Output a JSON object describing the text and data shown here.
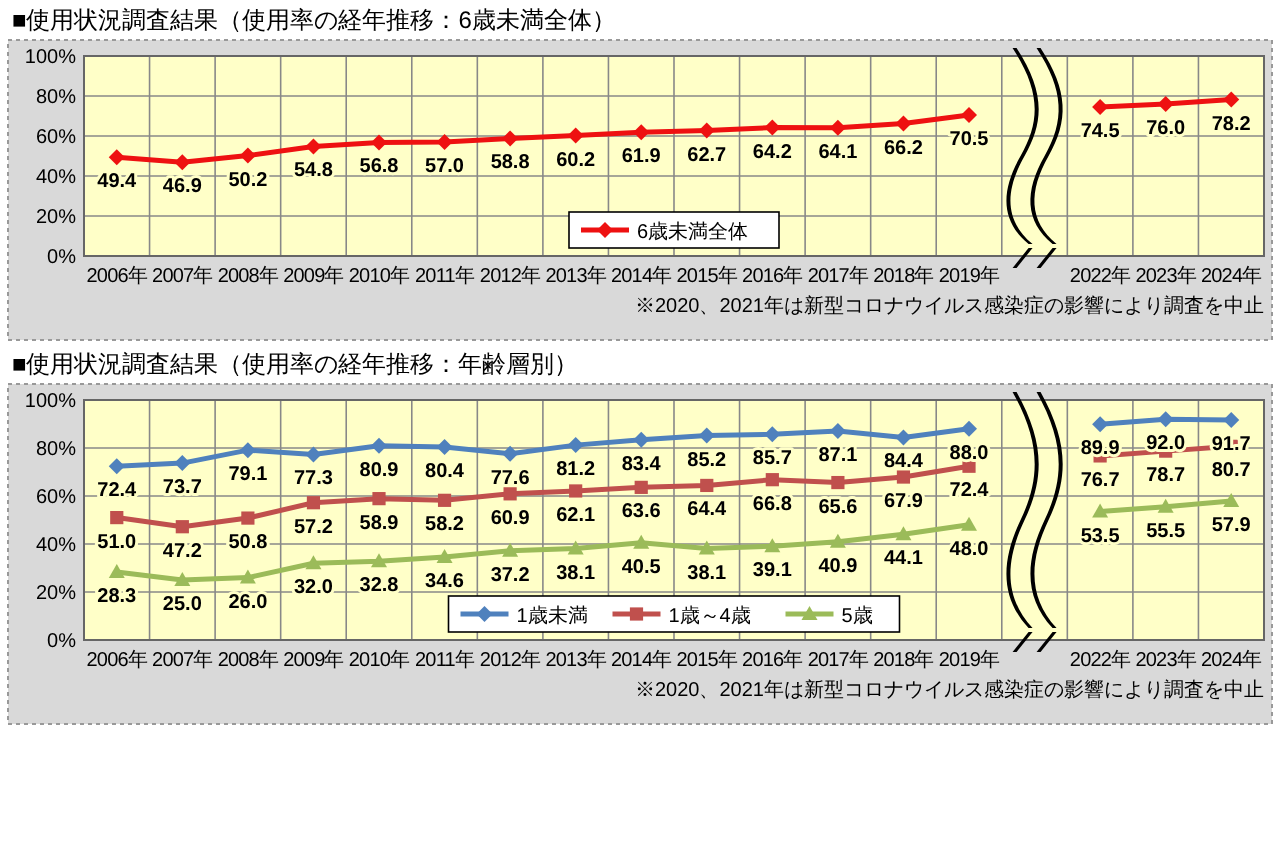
{
  "chart_data": [
    {
      "type": "line",
      "title": "■使用状況調査結果（使用率の経年推移：6歳未満全体）",
      "categories": [
        "2006年",
        "2007年",
        "2008年",
        "2009年",
        "2010年",
        "2011年",
        "2012年",
        "2013年",
        "2014年",
        "2015年",
        "2016年",
        "2017年",
        "2018年",
        "2019年",
        null,
        "2022年",
        "2023年",
        "2024年"
      ],
      "series": [
        {
          "name": "6歳未満全体",
          "color": "#ee1111",
          "marker": "diamond",
          "values": [
            49.4,
            46.9,
            50.2,
            54.8,
            56.8,
            57.0,
            58.8,
            60.2,
            61.9,
            62.7,
            64.2,
            64.1,
            66.2,
            70.5,
            null,
            74.5,
            76.0,
            78.2
          ],
          "value_labels": [
            "49.4",
            "46.9",
            "50.2",
            "54.8",
            "56.8",
            "57.0",
            "58.8",
            "60.2",
            "61.9",
            "62.7",
            "64.2",
            "64.1",
            "66.2",
            "70.5",
            null,
            "74.5",
            "76.0",
            "78.2"
          ]
        }
      ],
      "ylim": [
        0,
        100
      ],
      "yticks": [
        {
          "value": 0,
          "label": "0%"
        },
        {
          "value": 20,
          "label": "20%"
        },
        {
          "value": 40,
          "label": "40%"
        },
        {
          "value": 60,
          "label": "60%"
        },
        {
          "value": 80,
          "label": "80%"
        },
        {
          "value": 100,
          "label": "100%"
        }
      ],
      "grid": true,
      "legend": "bottom",
      "line_style": "solid",
      "annotations": [
        "※2020、2021年は新型コロナウイルス感染症の影響により調査を中止"
      ]
    },
    {
      "type": "line",
      "title": "■使用状況調査結果（使用率の経年推移：年齢層別）",
      "categories": [
        "2006年",
        "2007年",
        "2008年",
        "2009年",
        "2010年",
        "2011年",
        "2012年",
        "2013年",
        "2014年",
        "2015年",
        "2016年",
        "2017年",
        "2018年",
        "2019年",
        null,
        "2022年",
        "2023年",
        "2024年"
      ],
      "series": [
        {
          "name": "1歳未満",
          "color": "#4f81bd",
          "marker": "diamond",
          "values": [
            72.4,
            73.7,
            79.1,
            77.3,
            80.9,
            80.4,
            77.6,
            81.2,
            83.4,
            85.2,
            85.7,
            87.1,
            84.4,
            88.0,
            null,
            89.9,
            92.0,
            91.7
          ],
          "value_labels": [
            "72.4",
            "73.7",
            "79.1",
            "77.3",
            "80.9",
            "80.4",
            "77.6",
            "81.2",
            "83.4",
            "85.2",
            "85.7",
            "87.1",
            "84.4",
            "88.0",
            null,
            "89.9",
            "92.0",
            "91.7"
          ]
        },
        {
          "name": "1歳～4歳",
          "color": "#c0504d",
          "marker": "square",
          "values": [
            51.0,
            47.2,
            50.8,
            57.2,
            58.9,
            58.2,
            60.9,
            62.1,
            63.6,
            64.4,
            66.8,
            65.6,
            67.9,
            72.4,
            null,
            76.7,
            78.7,
            80.7
          ],
          "value_labels": [
            "51.0",
            "47.2",
            "50.8",
            "57.2",
            "58.9",
            "58.2",
            "60.9",
            "62.1",
            "63.6",
            "64.4",
            "66.8",
            "65.6",
            "67.9",
            "72.4",
            null,
            "76.7",
            "78.7",
            "80.7"
          ]
        },
        {
          "name": "5歳",
          "color": "#9bbb59",
          "marker": "triangle",
          "values": [
            28.3,
            25.0,
            26.0,
            32.0,
            32.8,
            34.6,
            37.2,
            38.1,
            40.5,
            38.1,
            39.1,
            40.9,
            44.1,
            48.0,
            null,
            53.5,
            55.5,
            57.9
          ],
          "value_labels": [
            "28.3",
            "25.0",
            "26.0",
            "32.0",
            "32.8",
            "34.6",
            "37.2",
            "38.1",
            "40.5",
            "38.1",
            "39.1",
            "40.9",
            "44.1",
            "48.0",
            null,
            "53.5",
            "55.5",
            "57.9"
          ]
        }
      ],
      "ylim": [
        0,
        100
      ],
      "yticks": [
        {
          "value": 0,
          "label": "0%"
        },
        {
          "value": 20,
          "label": "20%"
        },
        {
          "value": 40,
          "label": "40%"
        },
        {
          "value": 60,
          "label": "60%"
        },
        {
          "value": 80,
          "label": "80%"
        },
        {
          "value": 100,
          "label": "100%"
        }
      ],
      "grid": true,
      "legend": "bottom",
      "line_style": "solid",
      "annotations": [
        "※2020、2021年は新型コロナウイルス感染症の影響により調査を中止"
      ]
    }
  ]
}
